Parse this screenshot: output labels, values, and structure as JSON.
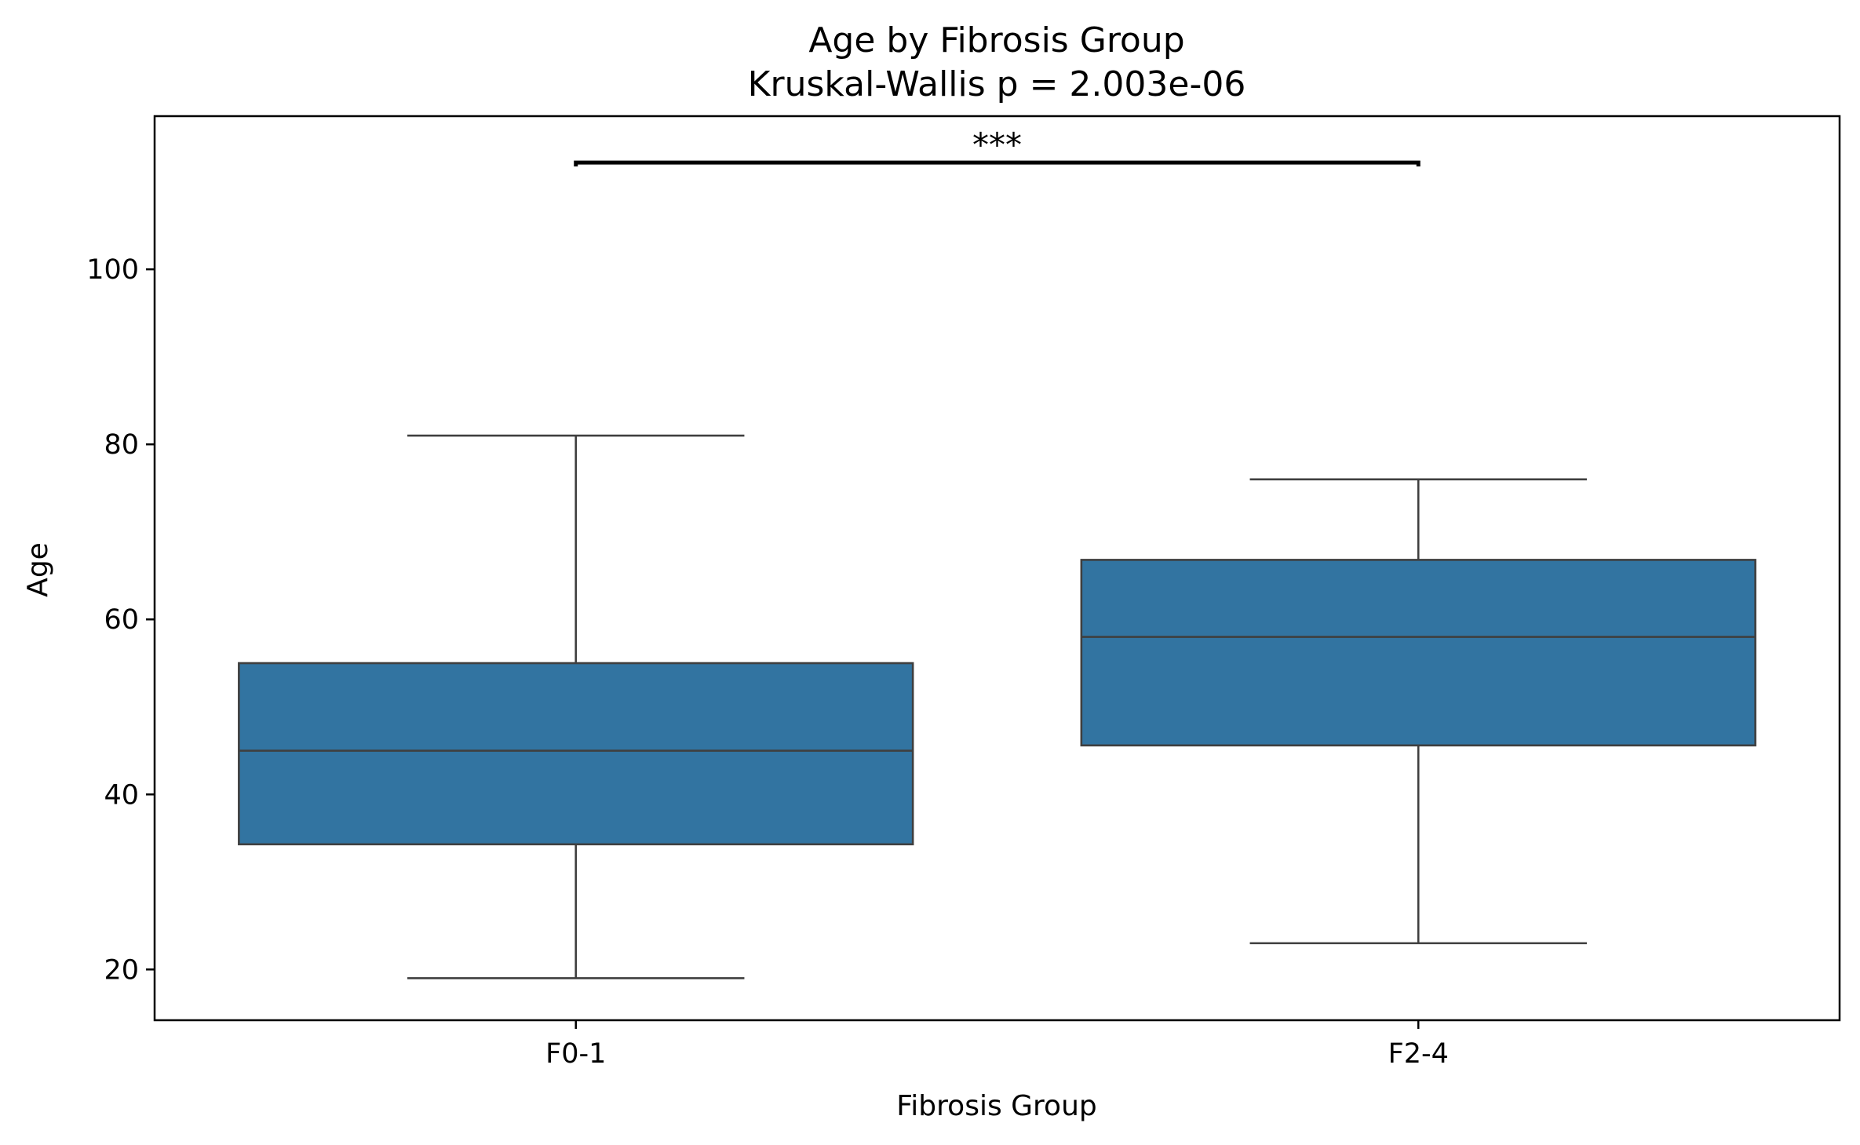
{
  "chart_data": {
    "type": "box",
    "title": "Age by Fibrosis Group",
    "subtitle": "Kruskal-Wallis p = 2.003e-06",
    "xlabel": "Fibrosis Group",
    "ylabel": "Age",
    "categories": [
      "F0-1",
      "F2-4"
    ],
    "boxes": [
      {
        "category": "F0-1",
        "whisker_low": 19,
        "q1": 34.3,
        "median": 45,
        "q3": 55,
        "whisker_high": 81
      },
      {
        "category": "F2-4",
        "whisker_low": 23,
        "q1": 45.6,
        "median": 58,
        "q3": 66.8,
        "whisker_high": 76
      }
    ],
    "yticks": [
      "20",
      "40",
      "60",
      "80",
      "100"
    ],
    "ylim": [
      14.2,
      117.5
    ],
    "significance": {
      "from": "F0-1",
      "to": "F2-4",
      "y": 112.2,
      "label": "***"
    },
    "grid": false,
    "colors": {
      "box_fill": "#3274a1",
      "box_edge": "#3f3f3f",
      "axis": "#000000"
    }
  }
}
